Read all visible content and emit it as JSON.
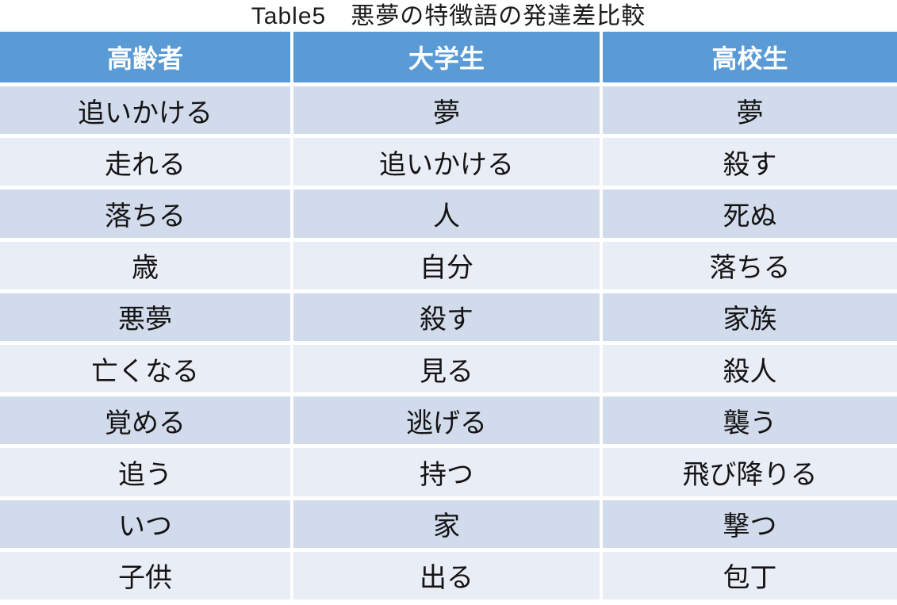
{
  "title": "Table5　悪夢の特徴語の発達差比較",
  "table": {
    "columns": [
      "高齢者",
      "大学生",
      "高校生"
    ],
    "rows": [
      [
        "追いかける",
        "夢",
        "夢"
      ],
      [
        "走れる",
        "追いかける",
        "殺す"
      ],
      [
        "落ちる",
        "人",
        "死ぬ"
      ],
      [
        "歳",
        "自分",
        "落ちる"
      ],
      [
        "悪夢",
        "殺す",
        "家族"
      ],
      [
        "亡くなる",
        "見る",
        "殺人"
      ],
      [
        "覚める",
        "逃げる",
        "襲う"
      ],
      [
        "追う",
        "持つ",
        "飛び降りる"
      ],
      [
        "いつ",
        "家",
        "撃つ"
      ],
      [
        "子供",
        "出る",
        "包丁"
      ]
    ]
  },
  "colors": {
    "header_bg": "#5B9BD5",
    "header_text": "#FFFFFF",
    "row_odd_bg": "#D2DBEC",
    "row_even_bg": "#E9EDF6",
    "body_text": "#141414"
  }
}
